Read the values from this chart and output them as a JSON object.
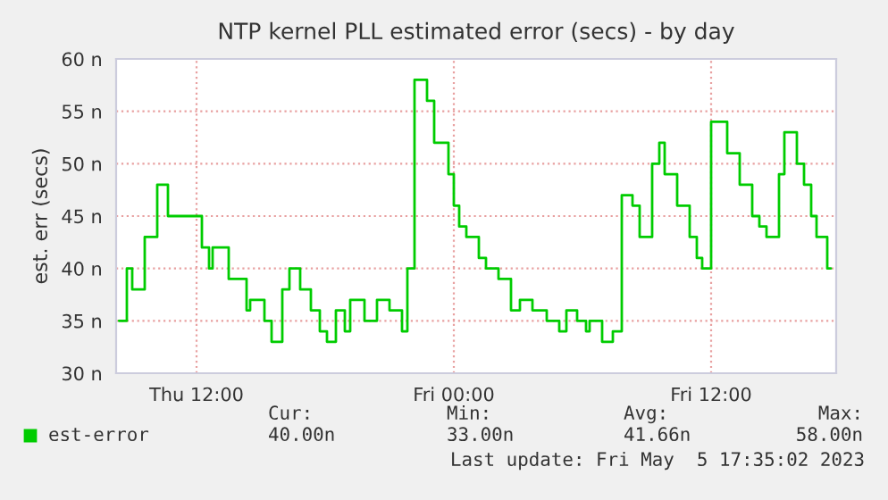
{
  "chart_data": {
    "type": "step",
    "title": "NTP kernel PLL estimated error (secs) - by day",
    "ylabel": "est. err (secs)",
    "series": [
      {
        "name": "est-error",
        "color": "#00cc00",
        "x": [
          "2023-05-04T08:23",
          "2023-05-04T08:45",
          "2023-05-04T09:00",
          "2023-05-04T09:35",
          "2023-05-04T10:10",
          "2023-05-04T10:40",
          "2023-05-04T12:15",
          "2023-05-04T12:35",
          "2023-05-04T12:45",
          "2023-05-04T13:30",
          "2023-05-04T14:20",
          "2023-05-04T14:30",
          "2023-05-04T15:10",
          "2023-05-04T15:30",
          "2023-05-04T16:00",
          "2023-05-04T16:20",
          "2023-05-04T16:50",
          "2023-05-04T17:20",
          "2023-05-04T17:45",
          "2023-05-04T18:05",
          "2023-05-04T18:30",
          "2023-05-04T18:55",
          "2023-05-04T19:10",
          "2023-05-04T19:30",
          "2023-05-04T19:50",
          "2023-05-04T20:25",
          "2023-05-04T21:00",
          "2023-05-04T21:35",
          "2023-05-04T21:50",
          "2023-05-04T22:10",
          "2023-05-04T22:45",
          "2023-05-04T23:05",
          "2023-05-04T23:45",
          "2023-05-05T00:00",
          "2023-05-05T00:15",
          "2023-05-05T00:35",
          "2023-05-05T01:10",
          "2023-05-05T01:30",
          "2023-05-05T02:05",
          "2023-05-05T02:40",
          "2023-05-05T03:05",
          "2023-05-05T03:40",
          "2023-05-05T04:20",
          "2023-05-05T04:55",
          "2023-05-05T05:15",
          "2023-05-05T05:45",
          "2023-05-05T06:10",
          "2023-05-05T06:20",
          "2023-05-05T06:55",
          "2023-05-05T07:25",
          "2023-05-05T07:50",
          "2023-05-05T08:20",
          "2023-05-05T08:40",
          "2023-05-05T09:15",
          "2023-05-05T09:35",
          "2023-05-05T09:50",
          "2023-05-05T10:25",
          "2023-05-05T11:00",
          "2023-05-05T11:20",
          "2023-05-05T11:35",
          "2023-05-05T12:00",
          "2023-05-05T12:45",
          "2023-05-05T13:20",
          "2023-05-05T13:55",
          "2023-05-05T14:15",
          "2023-05-05T14:35",
          "2023-05-05T15:10",
          "2023-05-05T15:25",
          "2023-05-05T16:00",
          "2023-05-05T16:20",
          "2023-05-05T16:40",
          "2023-05-05T16:55",
          "2023-05-05T17:25",
          "2023-05-05T17:35"
        ],
        "values": [
          35,
          40,
          38,
          43,
          48,
          45,
          42,
          40,
          42,
          39,
          36,
          37,
          35,
          33,
          38,
          40,
          38,
          36,
          34,
          33,
          36,
          34,
          37,
          37,
          35,
          37,
          36,
          34,
          40,
          58,
          56,
          52,
          49,
          46,
          44,
          43,
          41,
          40,
          39,
          36,
          37,
          36,
          35,
          34,
          36,
          35,
          34,
          35,
          33,
          34,
          47,
          46,
          43,
          50,
          52,
          49,
          46,
          43,
          41,
          40,
          54,
          51,
          48,
          45,
          44,
          43,
          49,
          53,
          50,
          48,
          45,
          43,
          40,
          40
        ]
      }
    ],
    "xlim": [
      "2023-05-04T08:15",
      "2023-05-05T17:50"
    ],
    "xticks": [
      {
        "value": "2023-05-04T12:00",
        "label": "Thu 12:00"
      },
      {
        "value": "2023-05-05T00:00",
        "label": "Fri 00:00"
      },
      {
        "value": "2023-05-05T12:00",
        "label": "Fri 12:00"
      }
    ],
    "ylim": [
      30,
      60
    ],
    "yticks": [
      {
        "value": 30,
        "label": "30 n"
      },
      {
        "value": 35,
        "label": "35 n"
      },
      {
        "value": 40,
        "label": "40 n"
      },
      {
        "value": 45,
        "label": "45 n"
      },
      {
        "value": 50,
        "label": "50 n"
      },
      {
        "value": 55,
        "label": "55 n"
      },
      {
        "value": 60,
        "label": "60 n"
      }
    ],
    "grid": true,
    "legend": "bottom",
    "line_style": "solid",
    "marker": "none",
    "annotations": [
      "Cur:",
      "Min:",
      "Avg:",
      "Max:",
      "40.00n",
      "33.00n",
      "41.66n",
      "58.00n",
      "Last update: Fri May  5 17:35:02 2023"
    ]
  }
}
